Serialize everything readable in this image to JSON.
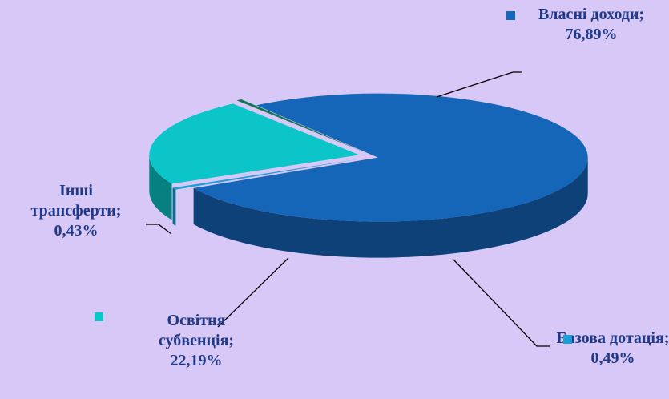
{
  "chart_data": {
    "type": "pie",
    "three_d": true,
    "categories": [
      "Власні доходи;",
      "Базова дотація;",
      "Освітня субвенція;",
      "Інші трансферти;"
    ],
    "values": [
      76.89,
      0.49,
      22.19,
      0.43
    ],
    "value_labels": [
      "76,89%",
      "0,49%",
      "22,19%",
      "0,43%"
    ],
    "colors": [
      "#1565b8",
      "#1aa0d8",
      "#0cc5c8",
      "#0b7a52"
    ],
    "legend": true
  }
}
